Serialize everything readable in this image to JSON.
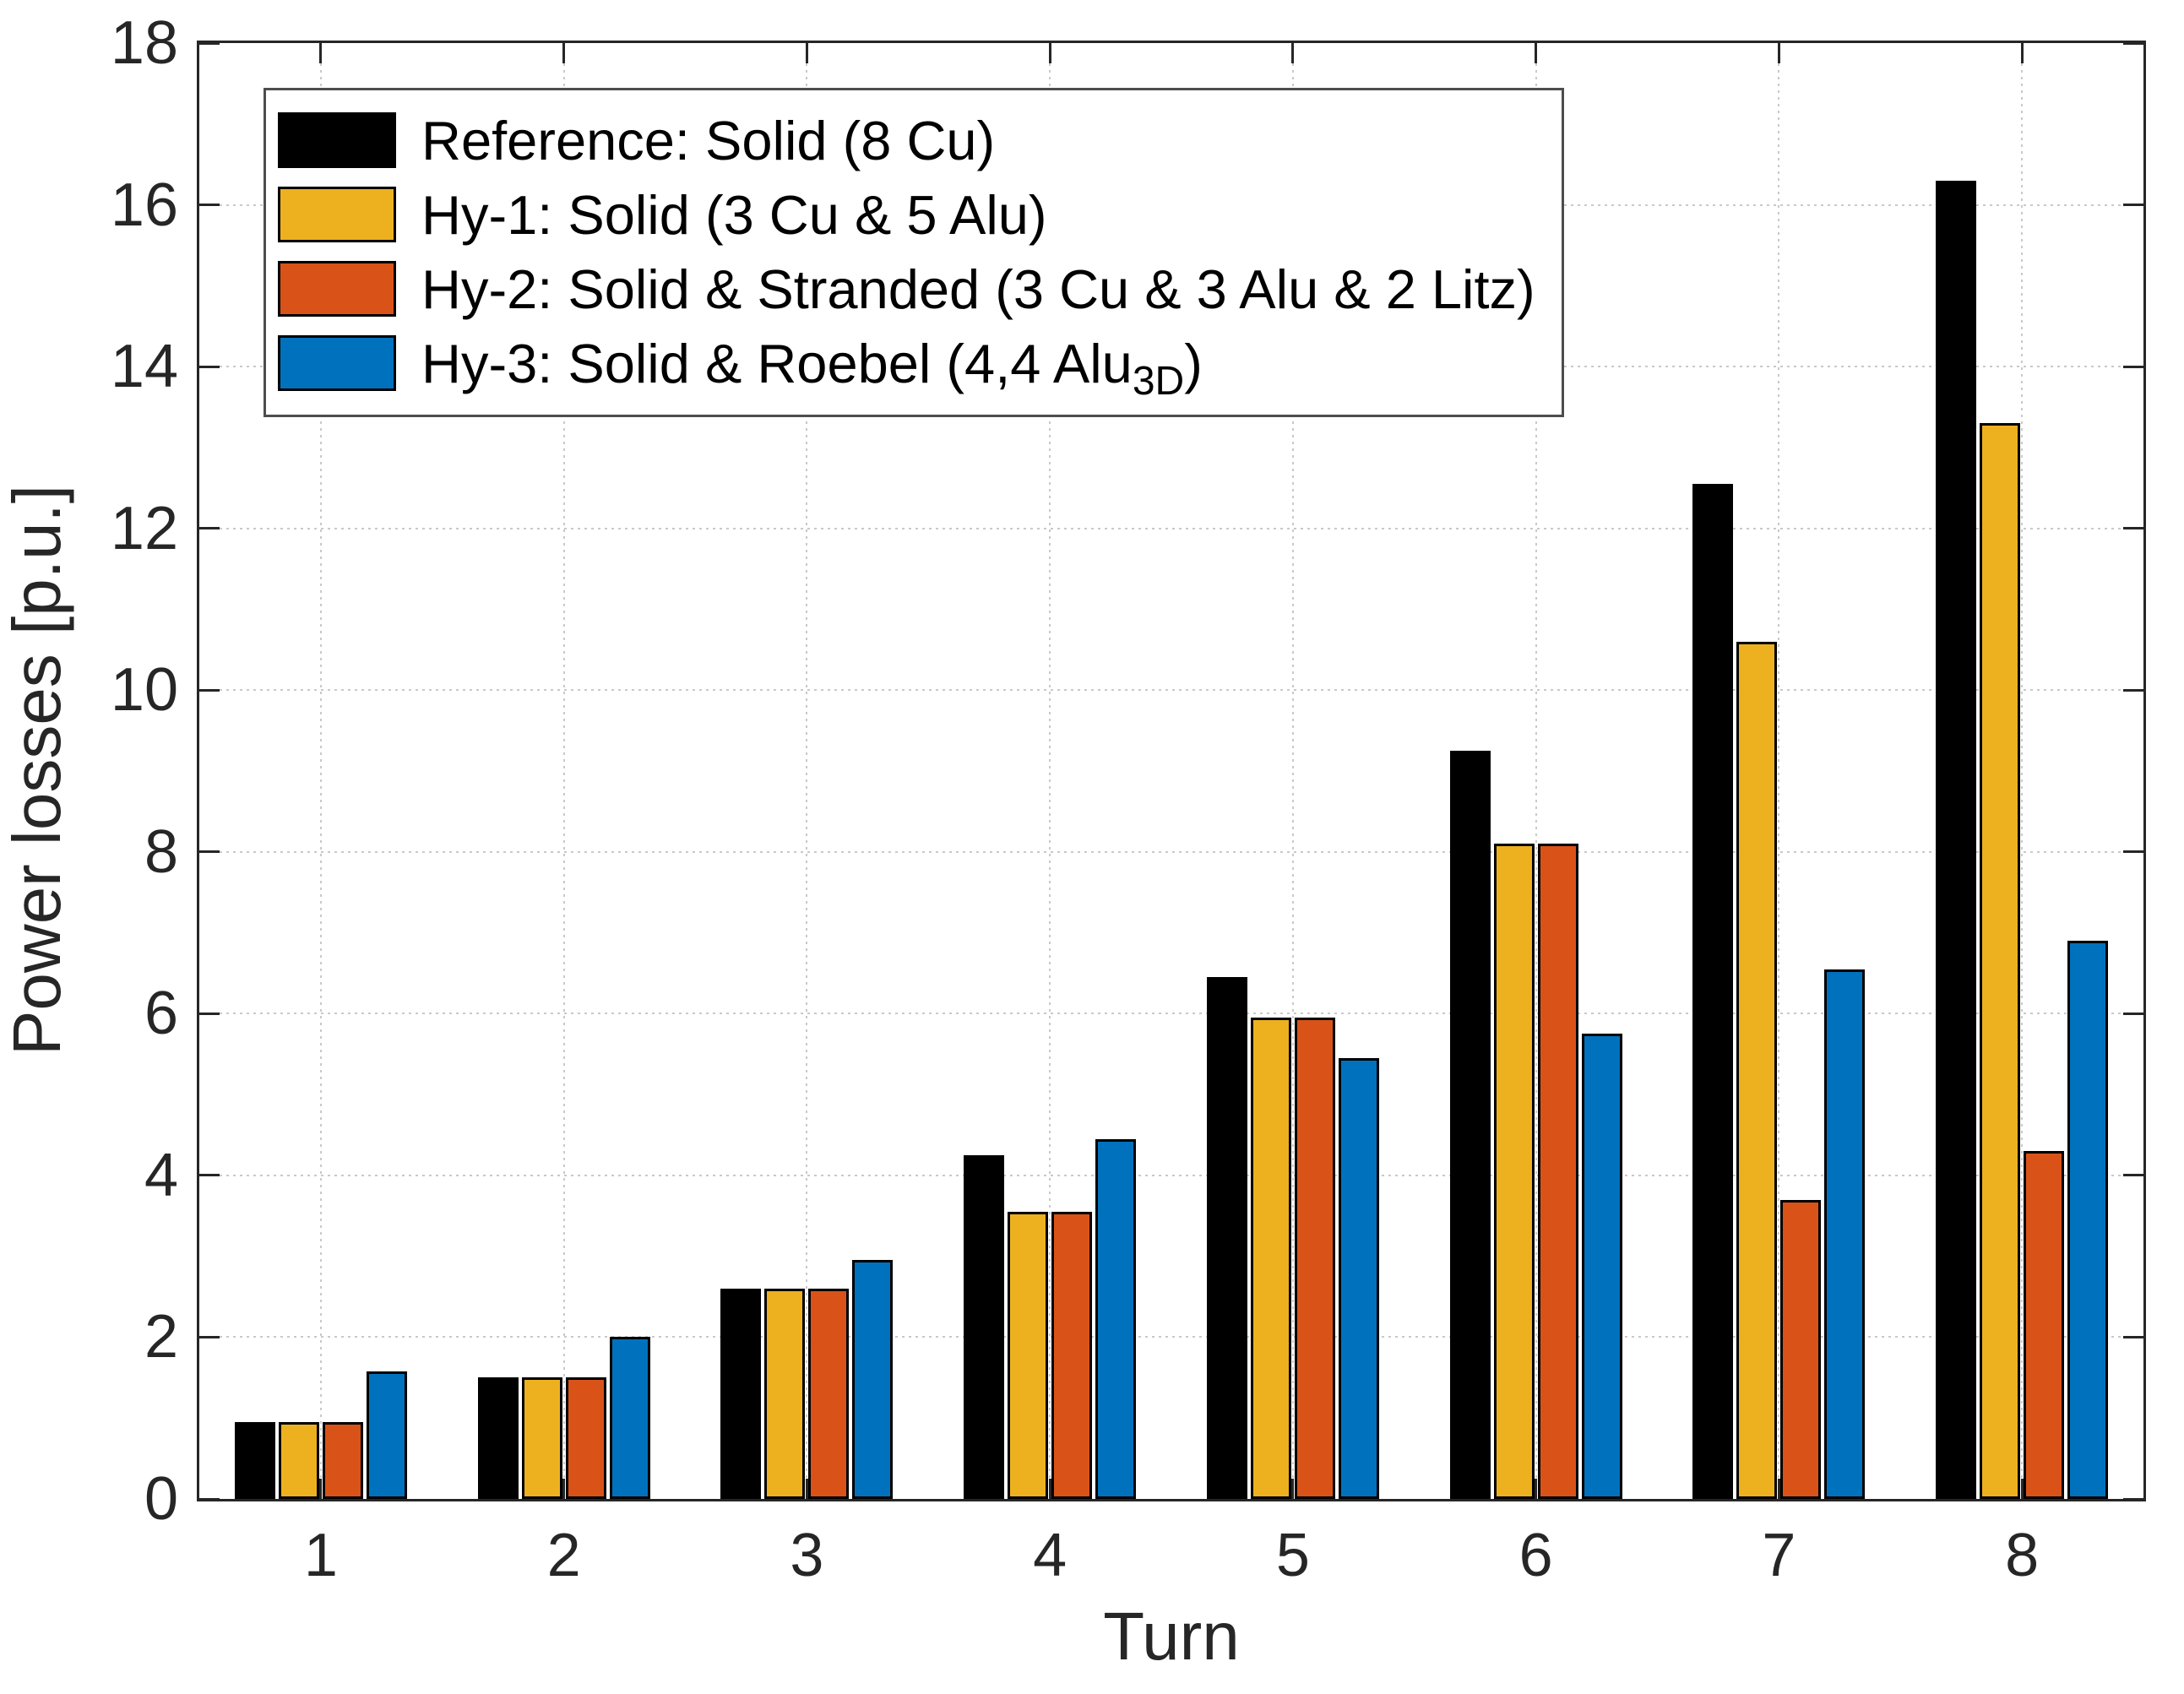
{
  "chart_data": {
    "type": "bar",
    "title": "",
    "xlabel": "Turn",
    "ylabel": "Power losses [p.u.]",
    "categories": [
      "1",
      "2",
      "3",
      "4",
      "5",
      "6",
      "7",
      "8"
    ],
    "ylim": [
      0,
      18
    ],
    "y_ticks": [
      0,
      2,
      4,
      6,
      8,
      10,
      12,
      14,
      16,
      18
    ],
    "grid": true,
    "legend_position": "top-left-inside",
    "series": [
      {
        "name": "Reference: Solid (8 Cu)",
        "color": "#000000",
        "values": [
          0.95,
          1.5,
          2.6,
          4.25,
          6.45,
          9.25,
          12.55,
          16.3
        ]
      },
      {
        "name": "Hy-1: Solid (3 Cu & 5 Alu)",
        "color": "#EDB120",
        "values": [
          0.95,
          1.5,
          2.6,
          3.55,
          5.95,
          8.1,
          10.6,
          13.3
        ]
      },
      {
        "name": "Hy-2: Solid & Stranded (3 Cu & 3 Alu & 2 Litz)",
        "color": "#D95319",
        "values": [
          0.95,
          1.5,
          2.6,
          3.55,
          5.95,
          8.1,
          3.7,
          4.3
        ]
      },
      {
        "name": "Hy-3: Solid & Roebel (4,4 Alu3D)",
        "color": "#0072BD",
        "values": [
          1.58,
          2.0,
          2.95,
          4.45,
          5.45,
          5.75,
          6.55,
          6.9
        ]
      }
    ]
  },
  "legend": {
    "items": [
      {
        "text": "Reference: Solid (8 Cu)",
        "sub": "",
        "suffix": "",
        "color": "#000000"
      },
      {
        "text": "Hy-1: Solid (3 Cu & 5 Alu)",
        "sub": "",
        "suffix": "",
        "color": "#EDB120"
      },
      {
        "text": "Hy-2: Solid & Stranded (3 Cu & 3 Alu & 2 Litz)",
        "sub": "",
        "suffix": "",
        "color": "#D95319"
      },
      {
        "text": "Hy-3: Solid & Roebel (4,4 Alu",
        "sub": "3D",
        "suffix": ")",
        "color": "#0072BD"
      }
    ]
  },
  "axes": {
    "spine_color": "#262626",
    "grid_color": "#c9c9c9",
    "x_label": "Turn",
    "y_label": "Power losses [p.u.]"
  }
}
